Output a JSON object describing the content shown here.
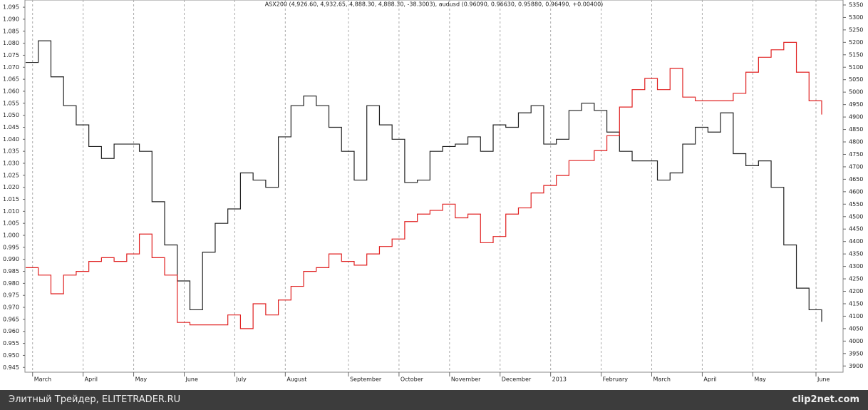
{
  "chart_data": {
    "type": "line",
    "title": "ASX200 (4,926.60, 4,932.65, 4,888.30, 4,888.30, -38.3003), audusd (0.96090, 0.96630, 0.95880, 0.96490, +0.00400)",
    "categories": [
      null,
      "March",
      null,
      null,
      null,
      "April",
      null,
      null,
      null,
      "May",
      null,
      null,
      null,
      "June",
      null,
      null,
      null,
      "July",
      null,
      null,
      null,
      "August",
      null,
      null,
      null,
      null,
      "September",
      null,
      null,
      null,
      "October",
      null,
      null,
      null,
      "November",
      null,
      null,
      null,
      "December",
      null,
      null,
      null,
      "2013",
      null,
      null,
      null,
      "February",
      null,
      null,
      null,
      "March",
      null,
      null,
      null,
      "April",
      null,
      null,
      null,
      "May",
      null,
      null,
      null,
      null,
      "June"
    ],
    "series": [
      {
        "color": "#222222",
        "values": [
          1.072,
          1.081,
          1.066,
          1.054,
          1.046,
          1.037,
          1.032,
          1.038,
          1.038,
          1.035,
          1.014,
          0.996,
          0.981,
          0.969,
          0.993,
          1.005,
          1.011,
          1.026,
          1.023,
          1.02,
          1.041,
          1.054,
          1.058,
          1.054,
          1.045,
          1.035,
          1.023,
          1.054,
          1.046,
          1.04,
          1.022,
          1.023,
          1.035,
          1.037,
          1.038,
          1.041,
          1.035,
          1.046,
          1.045,
          1.051,
          1.054,
          1.038,
          1.04,
          1.052,
          1.055,
          1.052,
          1.043,
          1.035,
          1.031,
          1.031,
          1.023,
          1.026,
          1.038,
          1.045,
          1.043,
          1.051,
          1.034,
          1.029,
          1.031,
          1.02,
          0.996,
          0.978,
          0.969,
          0.964
        ]
      },
      {
        "color": "#e02020",
        "axis": "y2",
        "values": [
          4295,
          4265,
          4190,
          4265,
          4280,
          4320,
          4335,
          4320,
          4350,
          4430,
          4335,
          4265,
          4075,
          4065,
          4065,
          4065,
          4105,
          4050,
          4150,
          4105,
          4165,
          4220,
          4280,
          4295,
          4350,
          4320,
          4305,
          4350,
          4380,
          4410,
          4480,
          4510,
          4525,
          4550,
          4495,
          4510,
          4395,
          4420,
          4510,
          4535,
          4595,
          4625,
          4665,
          4725,
          4725,
          4765,
          4825,
          4940,
          5010,
          5055,
          5010,
          5095,
          4980,
          4965,
          4965,
          4965,
          4995,
          5080,
          5140,
          5170,
          5200,
          5080,
          4965,
          4910
        ]
      }
    ],
    "ylim": [
      0.943,
      1.098
    ],
    "yticks": [
      0.945,
      {
        "value": 0.95,
        "label": "0.950"
      },
      0.955,
      {
        "value": 0.96,
        "label": "0.960"
      },
      0.965,
      {
        "value": 0.97,
        "label": "0.970"
      },
      0.975,
      {
        "value": 0.98,
        "label": "0.980"
      },
      0.985,
      {
        "value": 0.99,
        "label": "0.990"
      },
      0.995,
      {
        "value": 1,
        "label": "1.000"
      },
      1.005,
      {
        "value": 1.01,
        "label": "1.010"
      },
      1.015,
      {
        "value": 1.02,
        "label": "1.020"
      },
      1.025,
      {
        "value": 1.03,
        "label": "1.030"
      },
      1.035,
      {
        "value": 1.04,
        "label": "1.040"
      },
      1.045,
      {
        "value": 1.05,
        "label": "1.050"
      },
      1.055,
      {
        "value": 1.06,
        "label": "1.060"
      },
      1.065,
      {
        "value": 1.07,
        "label": "1.070"
      },
      1.075,
      {
        "value": 1.08,
        "label": "1.080"
      },
      1.085,
      {
        "value": 1.09,
        "label": "1.090"
      },
      1.095
    ],
    "y2lim": [
      3875,
      5370
    ],
    "y2ticks": [
      3900,
      3950,
      4000,
      4050,
      4100,
      4150,
      4200,
      4250,
      4300,
      4350,
      4400,
      4450,
      4500,
      4550,
      4600,
      4650,
      4700,
      4750,
      4800,
      4850,
      4900,
      4950,
      5000,
      5050,
      5100,
      5150,
      5200,
      5250,
      5300,
      5350
    ],
    "grid": true
  },
  "footer": {
    "site": "Элитный Трейдер, ELITETRADER.RU",
    "logo": "clip2net.com"
  }
}
